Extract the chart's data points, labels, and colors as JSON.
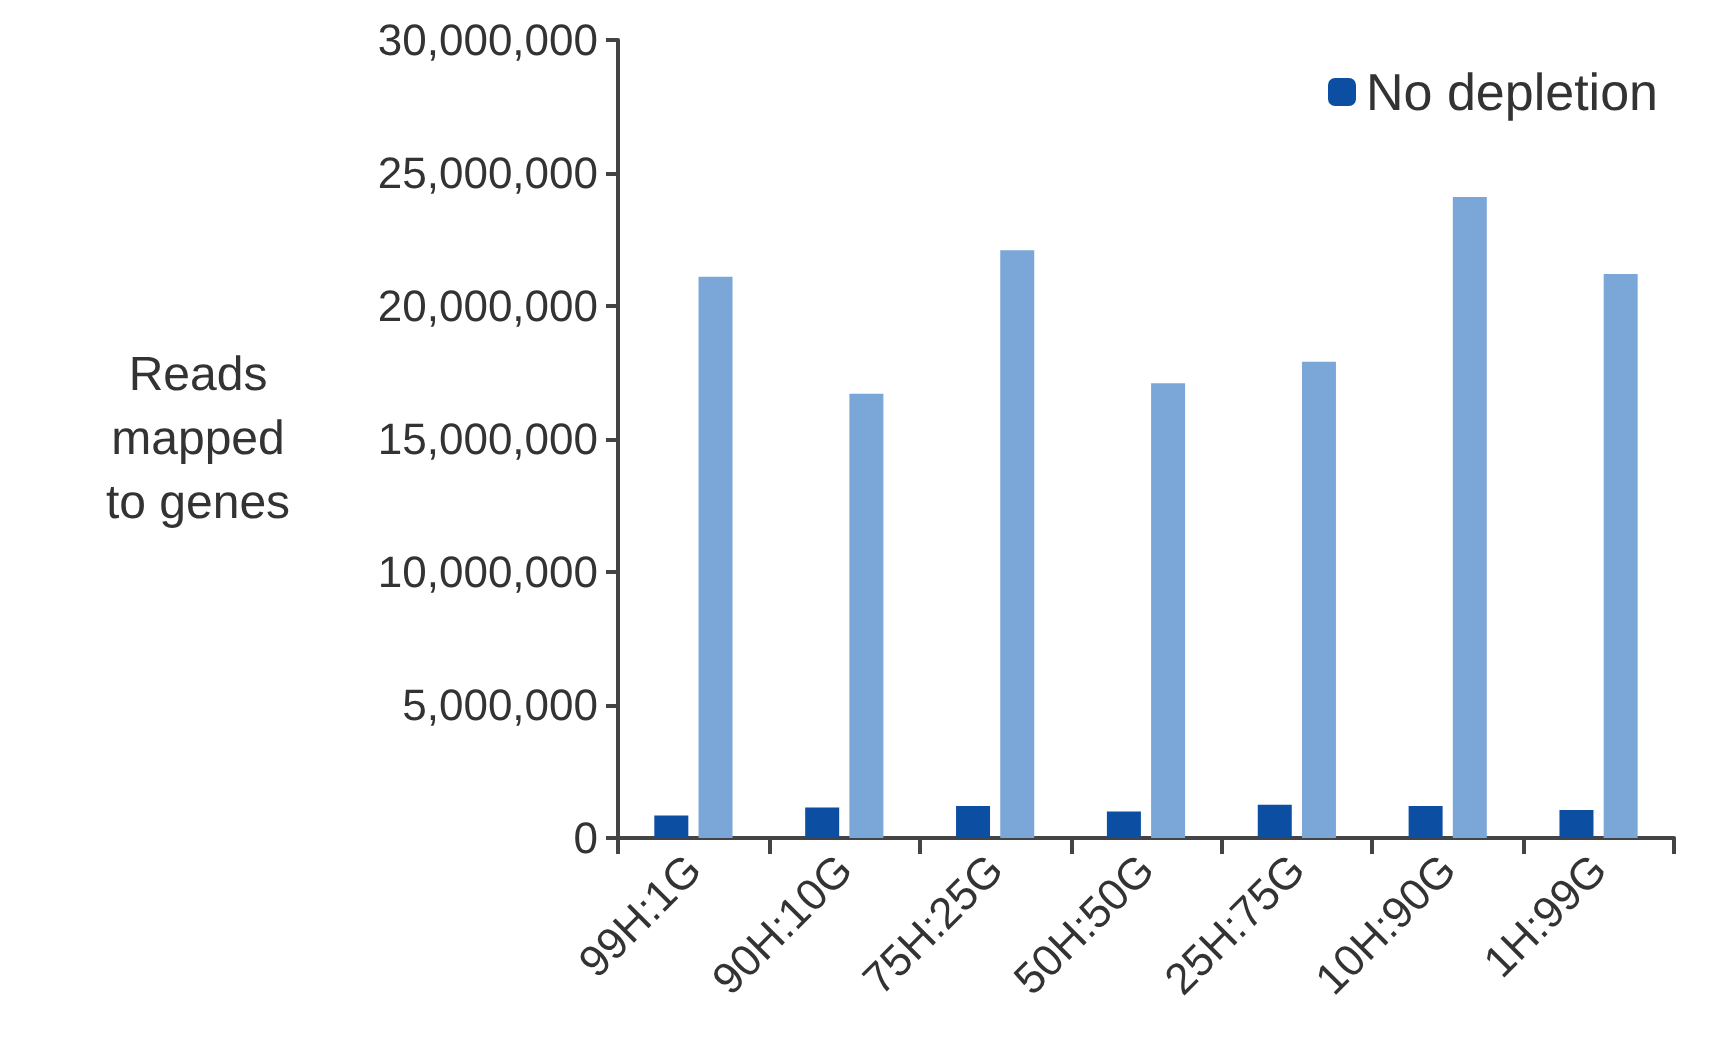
{
  "chart_data": {
    "type": "bar",
    "ylabel": "Reads\nmapped\nto genes",
    "categories": [
      "99H:1G",
      "90H:10G",
      "75H:25G",
      "50H:50G",
      "25H:75G",
      "10H:90G",
      "1H:99G"
    ],
    "series": [
      {
        "name": "No depletion",
        "color": "#0b4ea2",
        "values": [
          850000,
          1150000,
          1200000,
          1000000,
          1250000,
          1200000,
          1050000
        ]
      },
      {
        "color": "#7aa7d8",
        "values": [
          21100000,
          16700000,
          22100000,
          17100000,
          17900000,
          24100000,
          21200000
        ]
      }
    ],
    "ylim": [
      0,
      30000000
    ],
    "yticks": [
      0,
      {
        "value": 5000000,
        "label": "5,000,000"
      },
      {
        "value": 10000000,
        "label": "10,000,000"
      },
      {
        "value": 15000000,
        "label": "15,000,000"
      },
      {
        "value": 20000000,
        "label": "20,000,000"
      },
      {
        "value": 25000000,
        "label": "25,000,000"
      },
      {
        "value": 30000000,
        "label": "30,000,000"
      }
    ],
    "grid": false,
    "legend": "top right"
  }
}
